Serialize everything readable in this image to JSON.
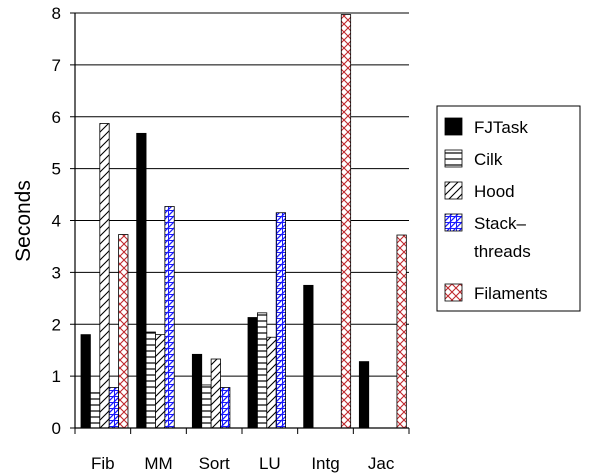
{
  "chart_data": {
    "type": "bar",
    "ylabel": "Seconds",
    "ylim": [
      0,
      8
    ],
    "yticks": [
      0,
      1,
      2,
      3,
      4,
      5,
      6,
      7,
      8
    ],
    "grid": true,
    "legend_position": "right",
    "categories": [
      "Fib",
      "MM",
      "Sort",
      "LU",
      "Intg",
      "Jac"
    ],
    "series": [
      {
        "name": "FJTask",
        "pattern": "solid",
        "color": "#000000",
        "values": [
          1.8,
          5.68,
          1.42,
          2.13,
          2.75,
          1.28
        ]
      },
      {
        "name": "Cilk",
        "pattern": "horizontal-lines",
        "color": "#000000",
        "values": [
          0.68,
          1.85,
          0.83,
          2.22,
          null,
          null
        ]
      },
      {
        "name": "Hood",
        "pattern": "diagonal-lines",
        "color": "#000000",
        "values": [
          5.87,
          1.8,
          1.33,
          1.75,
          null,
          null
        ]
      },
      {
        "name": "Stack–\nthreads",
        "pattern": "blue-hatch",
        "color": "#1a1aff",
        "values": [
          0.78,
          4.27,
          0.78,
          4.15,
          null,
          null
        ]
      },
      {
        "name": "Filaments",
        "pattern": "red-crosshatch",
        "color": "#c0282d",
        "values": [
          3.73,
          null,
          null,
          null,
          7.97,
          3.72
        ]
      }
    ]
  }
}
